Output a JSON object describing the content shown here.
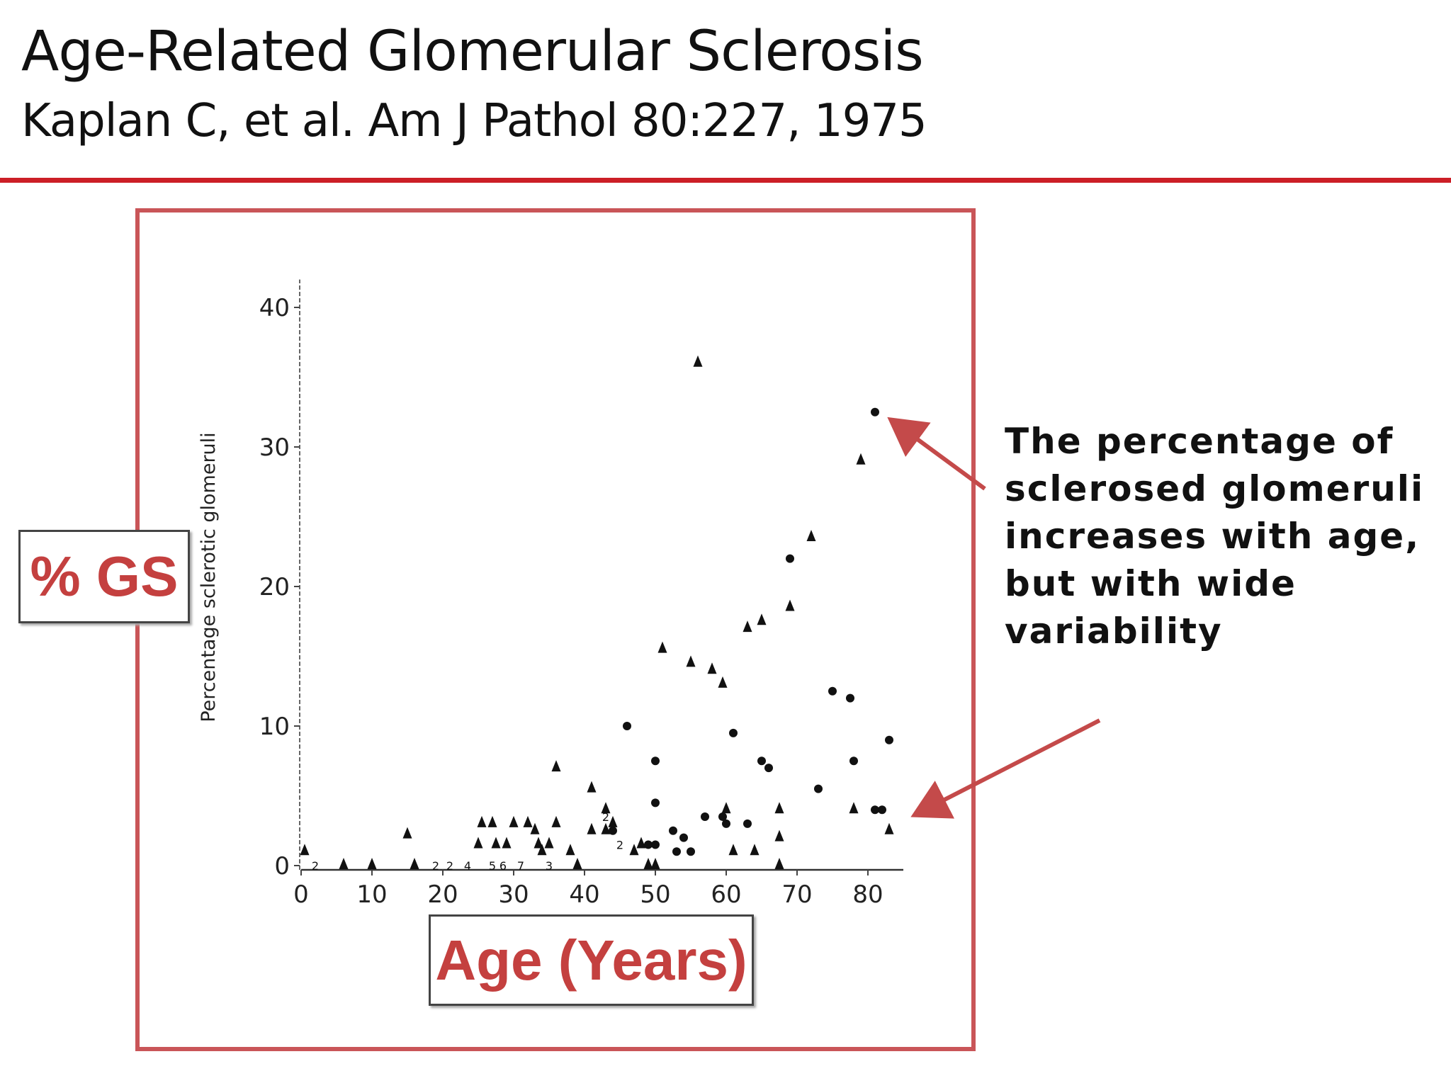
{
  "slide": {
    "title": "Age-Related Glomerular Sclerosis",
    "subtitle": "Kaplan C, et al.  Am J Pathol 80:227, 1975",
    "annotation_lines": [
      "The percentage of",
      "sclerosed glomeruli",
      "increases with age,",
      "but with wide",
      "variability"
    ],
    "gs_label": "% GS",
    "age_label": "Age (Years)",
    "accent_color": "#cc1f26",
    "arrow_color": "#c44a4a"
  },
  "chart_data": {
    "type": "scatter",
    "ylabel": "Percentage sclerotic glomeruli",
    "xlabel": "",
    "x_ticks": [
      0,
      10,
      20,
      30,
      40,
      50,
      60,
      70,
      80
    ],
    "y_ticks": [
      0,
      10,
      20,
      30,
      40
    ],
    "xlim": [
      0,
      85
    ],
    "ylim": [
      0,
      42
    ],
    "marker_colors": {
      "points": "#111111"
    },
    "series": [
      {
        "marker": "triangle",
        "points": [
          [
            0.5,
            1
          ],
          [
            6,
            0
          ],
          [
            10,
            0
          ],
          [
            15,
            2.2
          ],
          [
            16,
            0
          ],
          [
            25,
            1.5
          ],
          [
            25.5,
            3
          ],
          [
            27,
            3
          ],
          [
            27.5,
            1.5
          ],
          [
            29,
            1.5
          ],
          [
            30,
            3
          ],
          [
            32,
            3
          ],
          [
            33,
            2.5
          ],
          [
            33.5,
            1.5
          ],
          [
            34,
            1
          ],
          [
            35,
            1.5
          ],
          [
            36,
            3
          ],
          [
            36,
            7
          ],
          [
            38,
            1
          ],
          [
            39,
            0
          ],
          [
            41,
            5.5
          ],
          [
            41,
            2.5
          ],
          [
            43,
            2.5
          ],
          [
            43,
            4
          ],
          [
            44,
            3
          ],
          [
            47,
            1
          ],
          [
            48,
            1.5
          ],
          [
            49,
            0
          ],
          [
            50,
            0
          ],
          [
            51,
            15.5
          ],
          [
            55,
            14.5
          ],
          [
            56,
            36
          ],
          [
            58,
            14
          ],
          [
            59.5,
            13
          ],
          [
            60,
            4
          ],
          [
            61,
            1
          ],
          [
            63,
            17
          ],
          [
            64,
            1
          ],
          [
            65,
            17.5
          ],
          [
            67.5,
            4
          ],
          [
            67.5,
            2
          ],
          [
            67.5,
            0
          ],
          [
            69,
            18.5
          ],
          [
            72,
            23.5
          ],
          [
            78,
            4
          ],
          [
            79,
            29
          ],
          [
            83,
            2.5
          ]
        ]
      },
      {
        "marker": "circle",
        "points": [
          [
            44,
            2.5
          ],
          [
            46,
            10
          ],
          [
            49,
            1.5
          ],
          [
            50,
            1.5
          ],
          [
            50,
            7.5
          ],
          [
            50,
            4.5
          ],
          [
            52.5,
            2.5
          ],
          [
            53,
            1
          ],
          [
            54,
            2
          ],
          [
            55,
            1
          ],
          [
            57,
            3.5
          ],
          [
            59.5,
            3.5
          ],
          [
            60,
            3
          ],
          [
            61,
            9.5
          ],
          [
            63,
            3
          ],
          [
            65,
            7.5
          ],
          [
            66,
            7
          ],
          [
            69,
            22
          ],
          [
            73,
            5.5
          ],
          [
            75,
            12.5
          ],
          [
            77.5,
            12
          ],
          [
            78,
            7.5
          ],
          [
            81,
            32.5
          ],
          [
            81,
            4
          ],
          [
            82,
            4
          ],
          [
            83,
            9
          ]
        ]
      },
      {
        "marker": "label",
        "points": [
          [
            2,
            0,
            "2"
          ],
          [
            19,
            0,
            "2"
          ],
          [
            21,
            0,
            "2"
          ],
          [
            23.5,
            0,
            "4"
          ],
          [
            27,
            0,
            "5"
          ],
          [
            28.5,
            0,
            "6"
          ],
          [
            31,
            0,
            "7"
          ],
          [
            35,
            0,
            "3"
          ],
          [
            43,
            3.5,
            "2"
          ],
          [
            45,
            1.5,
            "2"
          ]
        ]
      }
    ]
  }
}
